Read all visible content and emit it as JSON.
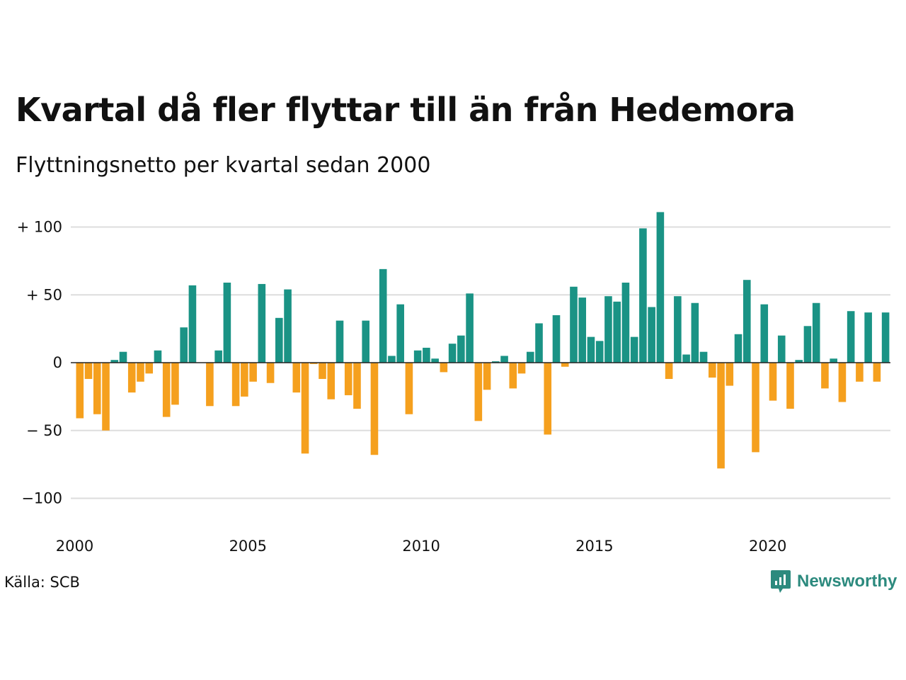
{
  "title": "Kvartal då fler flyttar till än från Hedemora",
  "subtitle": "Flyttningsnetto per kvartal sedan 2000",
  "source": "Källa: SCB",
  "brand": {
    "name": "Newsworthy",
    "icon": "chart-bubble-icon"
  },
  "colors": {
    "positive": "#1a9385",
    "negative": "#f5a01e",
    "grid": "#dddddd",
    "zero": "#222222",
    "brand": "#2c8a7e"
  },
  "chart_data": {
    "type": "bar",
    "title": "Kvartal då fler flyttar till än från Hedemora",
    "subtitle": "Flyttningsnetto per kvartal sedan 2000",
    "xlabel": "",
    "ylabel": "",
    "ylim": [
      -120,
      112
    ],
    "yticks": [
      {
        "value": 100,
        "label": "+ 100"
      },
      {
        "value": 50,
        "label": "+  50"
      },
      {
        "value": 0,
        "label": "0"
      },
      {
        "value": -50,
        "label": "− 50"
      },
      {
        "value": -100,
        "label": "−100"
      }
    ],
    "xticks": [
      "2000",
      "2005",
      "2010",
      "2015",
      "2020"
    ],
    "x_start_year": 2000,
    "grid": true,
    "categories": [
      "2000 K1",
      "2000 K2",
      "2000 K3",
      "2000 K4",
      "2001 K1",
      "2001 K2",
      "2001 K3",
      "2001 K4",
      "2002 K1",
      "2002 K2",
      "2002 K3",
      "2002 K4",
      "2003 K1",
      "2003 K2",
      "2003 K3",
      "2003 K4",
      "2004 K1",
      "2004 K2",
      "2004 K3",
      "2004 K4",
      "2005 K1",
      "2005 K2",
      "2005 K3",
      "2005 K4",
      "2006 K1",
      "2006 K2",
      "2006 K3",
      "2006 K4",
      "2007 K1",
      "2007 K2",
      "2007 K3",
      "2007 K4",
      "2008 K1",
      "2008 K2",
      "2008 K3",
      "2008 K4",
      "2009 K1",
      "2009 K2",
      "2009 K3",
      "2009 K4",
      "2010 K1",
      "2010 K2",
      "2010 K3",
      "2010 K4",
      "2011 K1",
      "2011 K2",
      "2011 K3",
      "2011 K4",
      "2012 K1",
      "2012 K2",
      "2012 K3",
      "2012 K4",
      "2013 K1",
      "2013 K2",
      "2013 K3",
      "2013 K4",
      "2014 K1",
      "2014 K2",
      "2014 K3",
      "2014 K4",
      "2015 K1",
      "2015 K2",
      "2015 K3",
      "2015 K4",
      "2016 K1",
      "2016 K2",
      "2016 K3",
      "2016 K4",
      "2017 K1",
      "2017 K2",
      "2017 K3",
      "2017 K4",
      "2018 K1",
      "2018 K2",
      "2018 K3",
      "2018 K4",
      "2019 K1",
      "2019 K2",
      "2019 K3",
      "2019 K4",
      "2020 K1",
      "2020 K2",
      "2020 K3",
      "2020 K4",
      "2021 K1",
      "2021 K2",
      "2021 K3",
      "2021 K4",
      "2022 K1",
      "2022 K2",
      "2022 K3",
      "2022 K4",
      "2023 K1",
      "2023 K2",
      "2023 K3",
      "2023 K4"
    ],
    "values": [
      -41,
      -12,
      -38,
      -50,
      2,
      8,
      -22,
      -14,
      -8,
      9,
      -40,
      -31,
      26,
      57,
      0,
      -32,
      9,
      59,
      -32,
      -25,
      -14,
      58,
      -15,
      33,
      54,
      -22,
      -67,
      -1,
      -12,
      -27,
      31,
      -24,
      -34,
      31,
      -68,
      69,
      5,
      43,
      -38,
      9,
      11,
      3,
      -7,
      14,
      20,
      51,
      -43,
      -20,
      1,
      5,
      -19,
      -8,
      8,
      29,
      -53,
      35,
      -3,
      56,
      48,
      19,
      16,
      49,
      45,
      59,
      19,
      99,
      41,
      111,
      -12,
      49,
      6,
      44,
      8,
      -11,
      -78,
      -17,
      21,
      61,
      -66,
      43,
      -28,
      20,
      -34,
      2,
      27,
      44,
      -19,
      3,
      -29,
      38,
      -14,
      37,
      -14,
      37,
      0,
      0
    ]
  }
}
